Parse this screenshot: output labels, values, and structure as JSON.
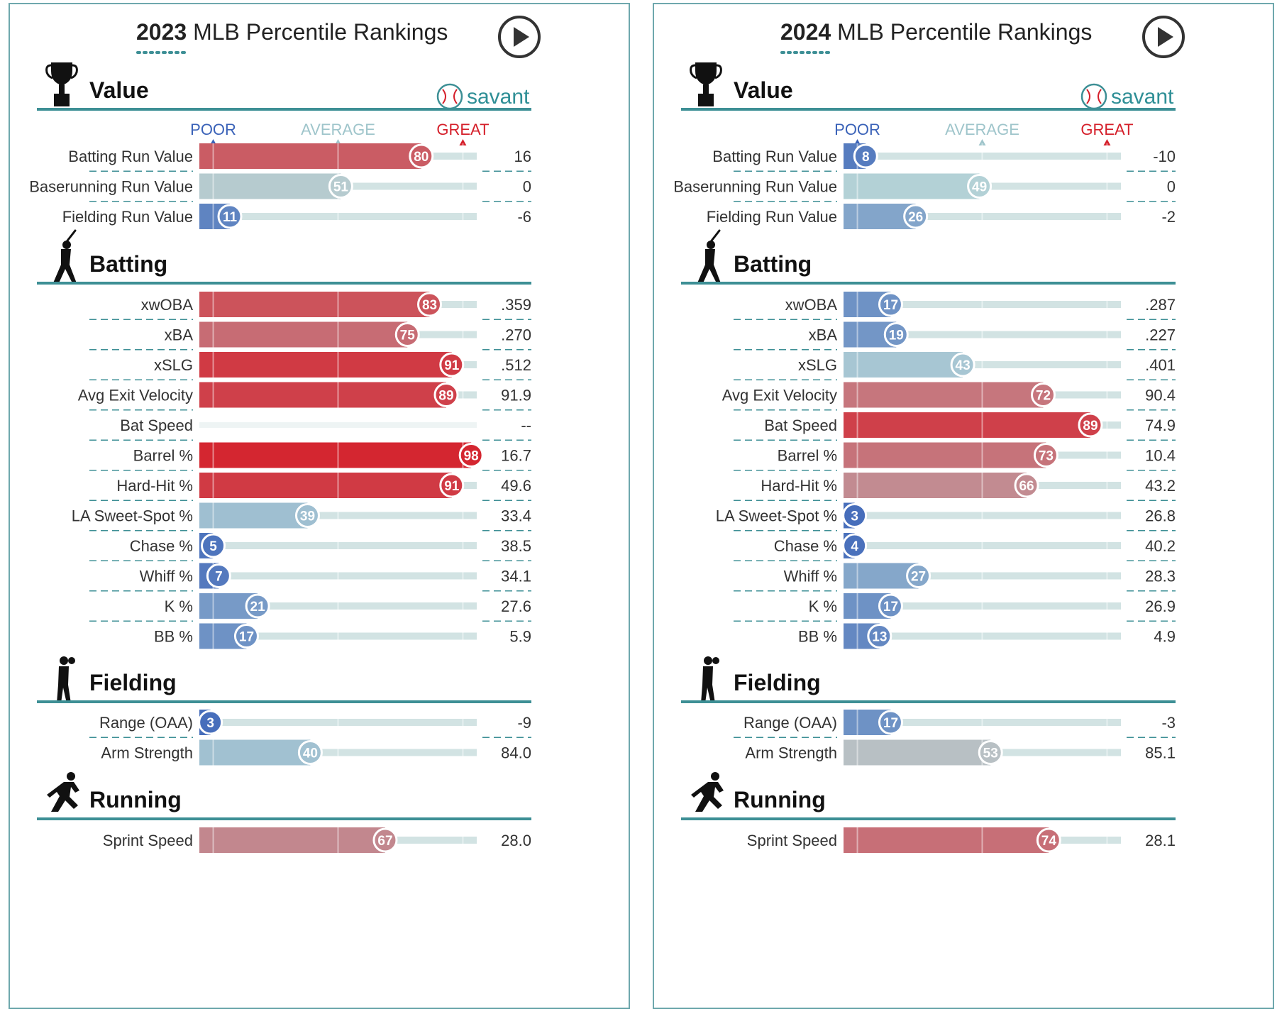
{
  "header_suffix": "MLB Percentile Rankings",
  "savant_label": "savant",
  "scale_labels": {
    "poor": "POOR",
    "average": "AVERAGE",
    "great": "GREAT"
  },
  "sections": [
    "Value",
    "Batting",
    "Fielding",
    "Running"
  ],
  "colors": {
    "teal_rule": "#3d8f95",
    "track": "#d2e3e3",
    "poor": "#3a62b8",
    "average_light": "#b7d6d6",
    "great": "#d5202b",
    "label_text": "#333333"
  },
  "chart_data": [
    {
      "type": "bar",
      "year": "2023",
      "title": "2023 MLB Percentile Rankings",
      "xlim": [
        0,
        100
      ],
      "series": [
        {
          "name": "Percentile",
          "values": [
            80,
            51,
            11,
            83,
            75,
            91,
            89,
            null,
            98,
            91,
            39,
            5,
            7,
            21,
            17,
            3,
            40,
            67
          ]
        }
      ],
      "rows": [
        {
          "section": "Value",
          "label": "Batting Run Value",
          "percentile": 80,
          "value": "16"
        },
        {
          "section": "Value",
          "label": "Baserunning Run Value",
          "percentile": 51,
          "value": "0"
        },
        {
          "section": "Value",
          "label": "Fielding Run Value",
          "percentile": 11,
          "value": "-6"
        },
        {
          "section": "Batting",
          "label": "xwOBA",
          "percentile": 83,
          "value": ".359"
        },
        {
          "section": "Batting",
          "label": "xBA",
          "percentile": 75,
          "value": ".270"
        },
        {
          "section": "Batting",
          "label": "xSLG",
          "percentile": 91,
          "value": ".512"
        },
        {
          "section": "Batting",
          "label": "Avg Exit Velocity",
          "percentile": 89,
          "value": "91.9"
        },
        {
          "section": "Batting",
          "label": "Bat Speed",
          "percentile": null,
          "value": "--"
        },
        {
          "section": "Batting",
          "label": "Barrel %",
          "percentile": 98,
          "value": "16.7"
        },
        {
          "section": "Batting",
          "label": "Hard-Hit %",
          "percentile": 91,
          "value": "49.6"
        },
        {
          "section": "Batting",
          "label": "LA Sweet-Spot %",
          "percentile": 39,
          "value": "33.4"
        },
        {
          "section": "Batting",
          "label": "Chase %",
          "percentile": 5,
          "value": "38.5"
        },
        {
          "section": "Batting",
          "label": "Whiff %",
          "percentile": 7,
          "value": "34.1"
        },
        {
          "section": "Batting",
          "label": "K %",
          "percentile": 21,
          "value": "27.6"
        },
        {
          "section": "Batting",
          "label": "BB %",
          "percentile": 17,
          "value": "5.9"
        },
        {
          "section": "Fielding",
          "label": "Range (OAA)",
          "percentile": 3,
          "value": "-9"
        },
        {
          "section": "Fielding",
          "label": "Arm Strength",
          "percentile": 40,
          "value": "84.0"
        },
        {
          "section": "Running",
          "label": "Sprint Speed",
          "percentile": 67,
          "value": "28.0"
        }
      ]
    },
    {
      "type": "bar",
      "year": "2024",
      "title": "2024 MLB Percentile Rankings",
      "xlim": [
        0,
        100
      ],
      "series": [
        {
          "name": "Percentile",
          "values": [
            8,
            49,
            26,
            17,
            19,
            43,
            72,
            89,
            73,
            66,
            3,
            4,
            27,
            17,
            13,
            17,
            53,
            74
          ]
        }
      ],
      "rows": [
        {
          "section": "Value",
          "label": "Batting Run Value",
          "percentile": 8,
          "value": "-10"
        },
        {
          "section": "Value",
          "label": "Baserunning Run Value",
          "percentile": 49,
          "value": "0"
        },
        {
          "section": "Value",
          "label": "Fielding Run Value",
          "percentile": 26,
          "value": "-2"
        },
        {
          "section": "Batting",
          "label": "xwOBA",
          "percentile": 17,
          "value": ".287"
        },
        {
          "section": "Batting",
          "label": "xBA",
          "percentile": 19,
          "value": ".227"
        },
        {
          "section": "Batting",
          "label": "xSLG",
          "percentile": 43,
          "value": ".401"
        },
        {
          "section": "Batting",
          "label": "Avg Exit Velocity",
          "percentile": 72,
          "value": "90.4"
        },
        {
          "section": "Batting",
          "label": "Bat Speed",
          "percentile": 89,
          "value": "74.9"
        },
        {
          "section": "Batting",
          "label": "Barrel %",
          "percentile": 73,
          "value": "10.4"
        },
        {
          "section": "Batting",
          "label": "Hard-Hit %",
          "percentile": 66,
          "value": "43.2"
        },
        {
          "section": "Batting",
          "label": "LA Sweet-Spot %",
          "percentile": 3,
          "value": "26.8"
        },
        {
          "section": "Batting",
          "label": "Chase %",
          "percentile": 4,
          "value": "40.2"
        },
        {
          "section": "Batting",
          "label": "Whiff %",
          "percentile": 27,
          "value": "28.3"
        },
        {
          "section": "Batting",
          "label": "K %",
          "percentile": 17,
          "value": "26.9"
        },
        {
          "section": "Batting",
          "label": "BB %",
          "percentile": 13,
          "value": "4.9"
        },
        {
          "section": "Fielding",
          "label": "Range (OAA)",
          "percentile": 17,
          "value": "-3"
        },
        {
          "section": "Fielding",
          "label": "Arm Strength",
          "percentile": 53,
          "value": "85.1"
        },
        {
          "section": "Running",
          "label": "Sprint Speed",
          "percentile": 74,
          "value": "28.1"
        }
      ]
    }
  ]
}
